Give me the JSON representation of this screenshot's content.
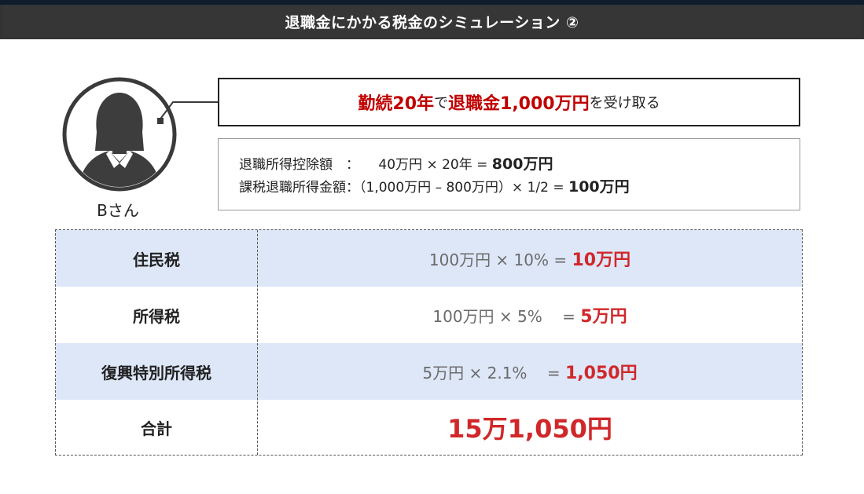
{
  "header": {
    "title": "退職金にかかる税金のシミュレーション ②"
  },
  "person": {
    "name": "Bさん"
  },
  "headline": {
    "part1": "勤続20年",
    "part2": "で",
    "part3": "退職金1,000万円",
    "part4": "を受け取る"
  },
  "calc": {
    "row1_label": "退職所得控除額",
    "row1_sep": "：",
    "row1_formula": "40万円 × 20年 = ",
    "row1_result": "800万円",
    "row2_label": "課税退職所得金額：",
    "row2_formula": "（1,000万円 – 800万円）× 1/2 = ",
    "row2_result": "100万円"
  },
  "taxes": [
    {
      "name": "住民税",
      "formula": "100万円 × 10% = ",
      "result": "10万円"
    },
    {
      "name": "所得税",
      "formula": "100万円 × 5%    = ",
      "result": "5万円"
    },
    {
      "name": "復興特別所得税",
      "formula": "5万円 × 2.1%    = ",
      "result": "1,050円"
    }
  ],
  "total": {
    "name": "合計",
    "value": "15万1,050円"
  },
  "colors": {
    "accent_red": "#c00000",
    "result_red": "#d0282a",
    "row_shade": "#dde7f8",
    "header_bg": "#363636"
  }
}
